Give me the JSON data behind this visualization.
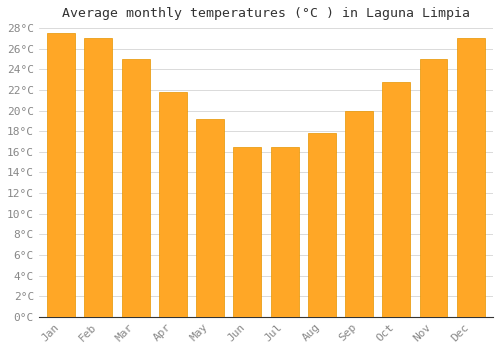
{
  "title": "Average monthly temperatures (°C ) in Laguna Limpia",
  "months": [
    "Jan",
    "Feb",
    "Mar",
    "Apr",
    "May",
    "Jun",
    "Jul",
    "Aug",
    "Sep",
    "Oct",
    "Nov",
    "Dec"
  ],
  "values": [
    27.5,
    27.0,
    25.0,
    21.8,
    19.2,
    16.5,
    16.5,
    17.8,
    20.0,
    22.8,
    25.0,
    27.0
  ],
  "bar_color": "#FFA726",
  "bar_edge_color": "#E69500",
  "background_color": "#FFFFFF",
  "grid_color": "#CCCCCC",
  "title_color": "#333333",
  "tick_color": "#888888",
  "ylim": [
    0,
    28
  ],
  "ytick_step": 2,
  "title_fontsize": 9.5,
  "tick_fontsize": 8
}
